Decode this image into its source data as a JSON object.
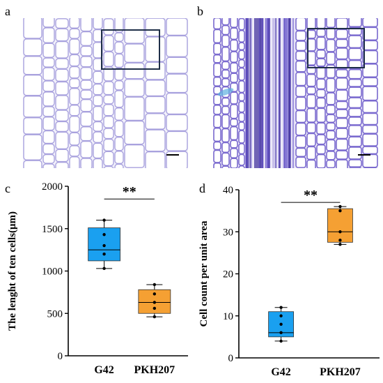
{
  "panels": {
    "a": {
      "letter": "a"
    },
    "b": {
      "letter": "b"
    },
    "c": {
      "letter": "c"
    },
    "d": {
      "letter": "d"
    }
  },
  "colors": {
    "g42": "#1aa0f0",
    "pkh207": "#f5a033",
    "stain_light": "#b9b3e6",
    "stain_dark": "#4a35a8"
  },
  "chart_data": [
    {
      "type": "box",
      "panel": "c",
      "ylabel": "The lenght of ten cells(μm)",
      "ylim": [
        0,
        2000
      ],
      "yticks": [
        "0",
        "500",
        "1000",
        "1500",
        "2000"
      ],
      "yticks_values": [
        0,
        500,
        1000,
        1500,
        2000
      ],
      "categories": [
        "G42",
        "PKH207"
      ],
      "significance": "**",
      "series": [
        {
          "name": "G42",
          "min": 1030,
          "q1": 1120,
          "median": 1250,
          "q3": 1510,
          "max": 1600,
          "points": [
            1030,
            1200,
            1300,
            1430,
            1600
          ]
        },
        {
          "name": "PKH207",
          "min": 460,
          "q1": 500,
          "median": 630,
          "q3": 780,
          "max": 840,
          "points": [
            460,
            560,
            630,
            730,
            840
          ]
        }
      ]
    },
    {
      "type": "box",
      "panel": "d",
      "ylabel": "Cell count per unit area",
      "ylim": [
        0,
        40
      ],
      "yticks": [
        "0",
        "10",
        "20",
        "30",
        "40"
      ],
      "yticks_values": [
        0,
        10,
        20,
        30,
        40
      ],
      "categories": [
        "G42",
        "PKH207"
      ],
      "significance": "**",
      "series": [
        {
          "name": "G42",
          "min": 4,
          "q1": 5,
          "median": 6,
          "q3": 11,
          "max": 12,
          "points": [
            4,
            6,
            8,
            10,
            12
          ]
        },
        {
          "name": "PKH207",
          "min": 27,
          "q1": 27.5,
          "median": 30,
          "q3": 35.5,
          "max": 36,
          "points": [
            27,
            28,
            30,
            35,
            36
          ]
        }
      ]
    }
  ]
}
